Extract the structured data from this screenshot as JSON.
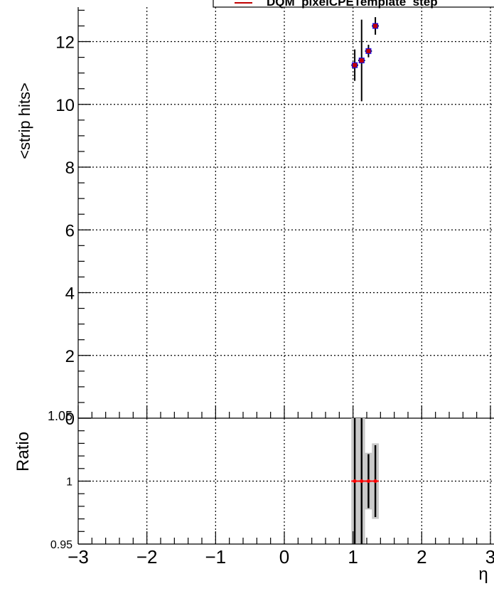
{
  "legend": {
    "label": "DQM_pixelCPETemplate_step"
  },
  "chart_data": [
    {
      "type": "scatter",
      "ylabel": "<strip hits>",
      "ylim": [
        0,
        13.1
      ],
      "xlim": [
        -3,
        3
      ],
      "grid": true,
      "y_ticks": [
        "0",
        "2",
        "4",
        "6",
        "8",
        "10",
        "12"
      ],
      "series": [
        {
          "name": "DQM_pixelCPETemplate_step",
          "color": "#0000ff",
          "marker_color": "#c00000",
          "points": [
            {
              "x": 1.025,
              "y": 11.25,
              "yerr": 0.5,
              "xerr": 0.05
            },
            {
              "x": 1.125,
              "y": 11.4,
              "yerr": 1.3,
              "xerr": 0.05
            },
            {
              "x": 1.225,
              "y": 11.7,
              "yerr": 0.2,
              "xerr": 0.05
            },
            {
              "x": 1.325,
              "y": 12.5,
              "yerr": 0.28,
              "xerr": 0.05
            }
          ]
        }
      ]
    },
    {
      "type": "scatter",
      "ylabel": "Ratio",
      "xlabel": "η",
      "ylim": [
        0.95,
        1.05
      ],
      "xlim": [
        -3,
        3
      ],
      "grid": true,
      "y_ticks": [
        "0.95",
        "1",
        "1.05"
      ],
      "x_ticks": [
        "−3",
        "−2",
        "−1",
        "0",
        "1",
        "2",
        "3"
      ],
      "series": [
        {
          "name": "ratio",
          "color": "#ff0000",
          "band_color": "#c8c8c8",
          "points": [
            {
              "x": 1.025,
              "y": 1.0,
              "yerr": 0.05,
              "band": 0.05
            },
            {
              "x": 1.125,
              "y": 1.0,
              "yerr": 0.05,
              "band": 0.05
            },
            {
              "x": 1.225,
              "y": 1.0,
              "yerr": 0.0215,
              "band": 0.0225
            },
            {
              "x": 1.325,
              "y": 1.0,
              "yerr": 0.0285,
              "band": 0.03
            }
          ]
        }
      ]
    }
  ]
}
